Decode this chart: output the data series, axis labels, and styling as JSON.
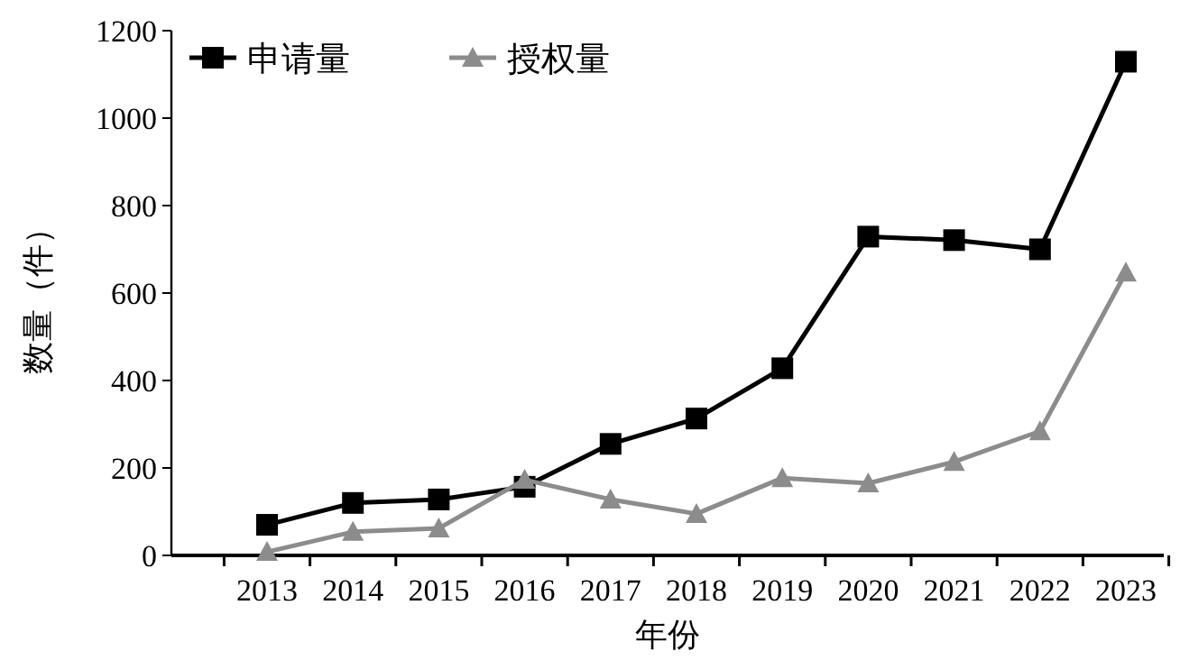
{
  "chart_data": {
    "type": "line",
    "xlabel": "年份",
    "ylabel": "数量（件）",
    "categories": [
      "2013",
      "2014",
      "2015",
      "2016",
      "2017",
      "2018",
      "2019",
      "2020",
      "2021",
      "2022",
      "2023"
    ],
    "series": [
      {
        "name": "申请量",
        "color": "#000000",
        "marker": "square",
        "values": [
          70,
          120,
          128,
          157,
          255,
          313,
          428,
          729,
          721,
          700,
          1129
        ]
      },
      {
        "name": "授权量",
        "color": "#8c8c8c",
        "marker": "triangle",
        "values": [
          8,
          54,
          62,
          173,
          128,
          95,
          177,
          165,
          214,
          284,
          647
        ]
      }
    ],
    "ylim": [
      0,
      1200
    ],
    "yticks": [
      0,
      200,
      400,
      600,
      800,
      1000,
      1200
    ],
    "legend": "top left"
  }
}
